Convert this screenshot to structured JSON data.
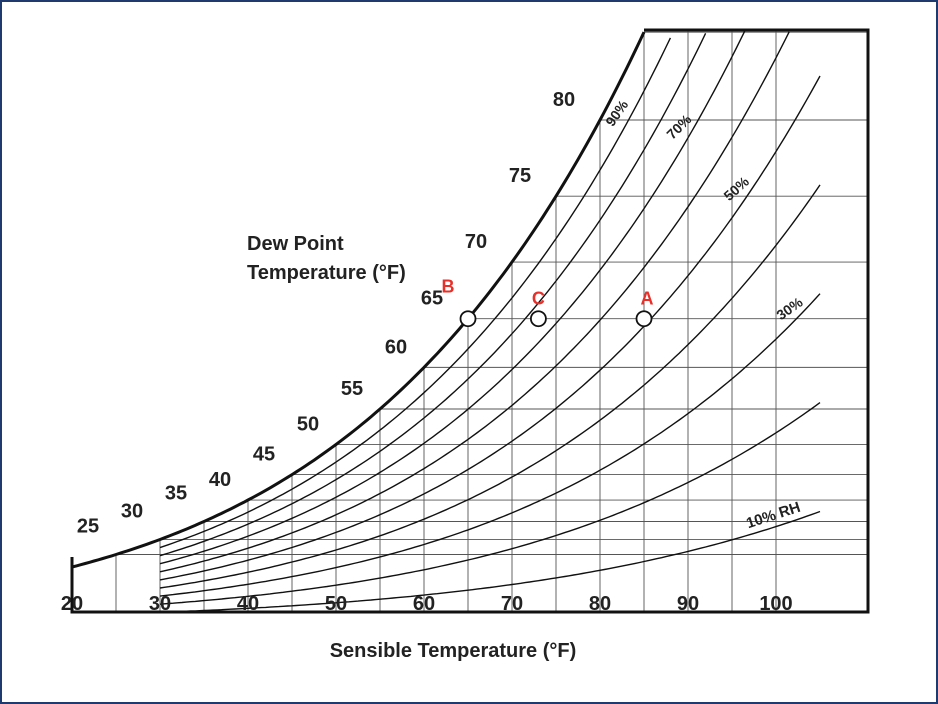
{
  "chart_data": {
    "type": "psychrometric",
    "xlabel": "Sensible Temperature (°F)",
    "ylabel": "Dew Point\nTemperature (°F)",
    "xlim": [
      20,
      105
    ],
    "ylim": [
      20,
      90
    ],
    "x_ticks": [
      "20",
      "30",
      "40",
      "50",
      "60",
      "70",
      "80",
      "90",
      "100"
    ],
    "dewpoint_ticks": [
      "25",
      "30",
      "35",
      "40",
      "45",
      "50",
      "55",
      "60",
      "65",
      "70",
      "75",
      "80"
    ],
    "rh_curves": [
      {
        "rh": 100,
        "label": ""
      },
      {
        "rh": 90,
        "label": "90%"
      },
      {
        "rh": 80,
        "label": ""
      },
      {
        "rh": 70,
        "label": "70%"
      },
      {
        "rh": 60,
        "label": ""
      },
      {
        "rh": 50,
        "label": "50%"
      },
      {
        "rh": 40,
        "label": ""
      },
      {
        "rh": 30,
        "label": "30%"
      },
      {
        "rh": 20,
        "label": ""
      },
      {
        "rh": 10,
        "label": "10% RH"
      }
    ],
    "points": [
      {
        "label": "A",
        "x": 85,
        "dewpoint": 65,
        "color": "#e8302a"
      },
      {
        "label": "B",
        "x": 65,
        "dewpoint": 65,
        "color": "#e8302a"
      },
      {
        "label": "C",
        "x": 73,
        "dewpoint": 65,
        "color": "#e8302a"
      }
    ],
    "grid": true
  }
}
